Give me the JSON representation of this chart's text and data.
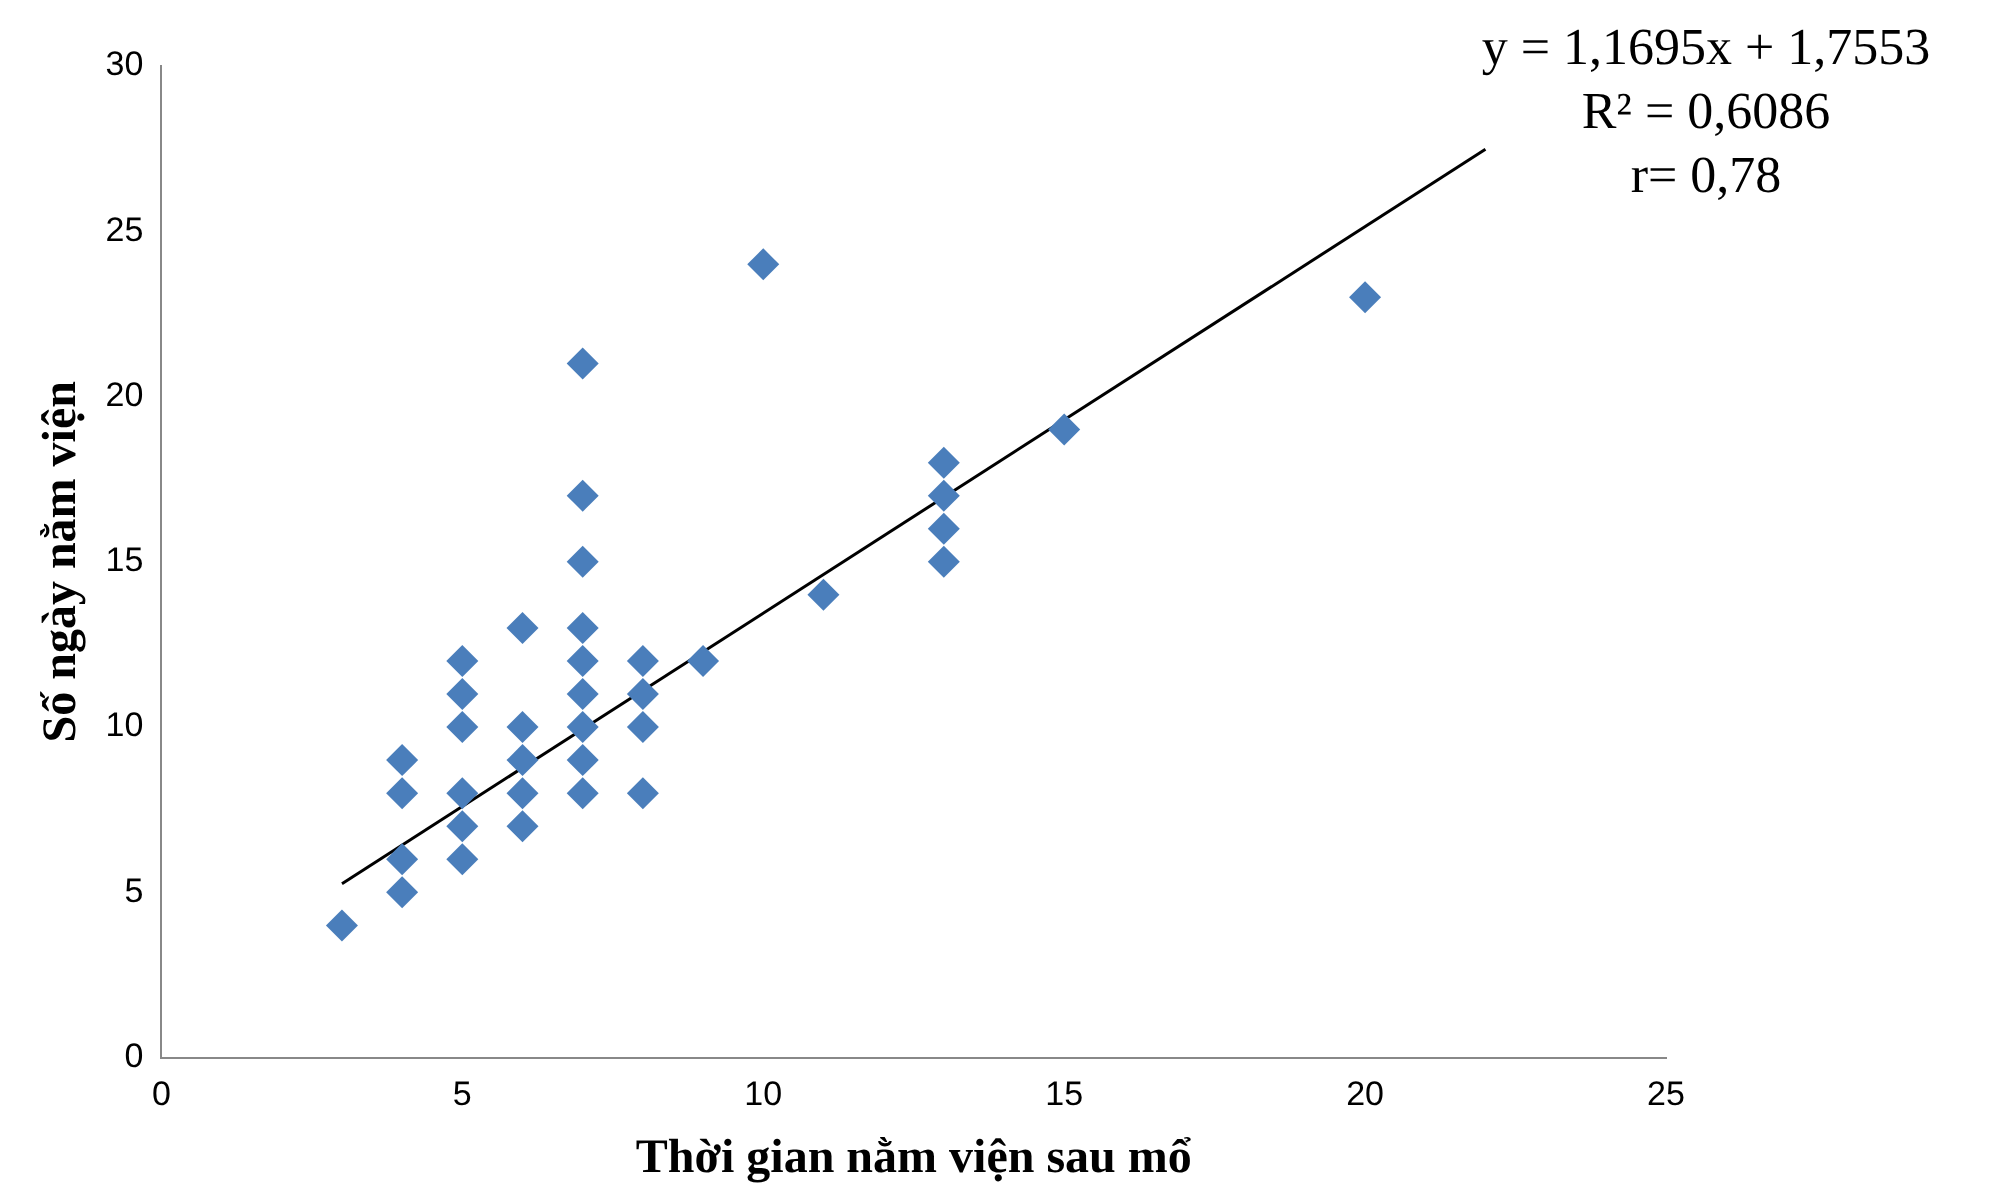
{
  "chart_data": {
    "type": "scatter",
    "xlabel": "Thời gian nằm viện sau mổ",
    "ylabel": "Số ngày nằm viện",
    "annotations": [
      "y = 1,1695x + 1,7553",
      "R² = 0,6086",
      "r= 0,78"
    ],
    "series": [
      {
        "type": "scatter",
        "color": "#4a7ebb",
        "marker": "diamond",
        "x": [
          3,
          4,
          4,
          4,
          4,
          5,
          5,
          5,
          5,
          5,
          5,
          6,
          6,
          6,
          6,
          6,
          7,
          7,
          7,
          7,
          7,
          7,
          7,
          7,
          7,
          8,
          8,
          8,
          8,
          9,
          10,
          11,
          13,
          13,
          13,
          13,
          15,
          20
        ],
        "values": [
          4,
          9,
          8,
          6,
          5,
          12,
          11,
          10,
          8,
          7,
          6,
          13,
          10,
          9,
          8,
          7,
          21,
          17,
          15,
          13,
          12,
          11,
          10,
          9,
          8,
          12,
          11,
          10,
          8,
          12,
          24,
          14,
          18,
          17,
          16,
          15,
          19,
          23
        ]
      },
      {
        "type": "line",
        "color": "#000000",
        "marker": "none",
        "line_style": "solid",
        "x": [
          3,
          22
        ],
        "values": [
          5.26,
          27.48
        ]
      }
    ],
    "xlim": [
      0,
      25
    ],
    "xticks": [
      0,
      5,
      10,
      15,
      20,
      25
    ],
    "ylim": [
      0,
      30
    ],
    "yticks": [
      0,
      5,
      10,
      15,
      20,
      25,
      30
    ],
    "grid": false,
    "legend": false
  }
}
